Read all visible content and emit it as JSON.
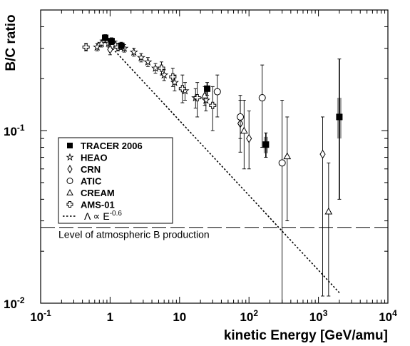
{
  "chart_data": {
    "type": "scatter",
    "xscale": "log",
    "yscale": "log",
    "xlim": [
      0.1,
      10000
    ],
    "ylim": [
      0.01,
      0.5
    ],
    "xlabel": "kinetic Energy [GeV/amu]",
    "ylabel": "B/C ratio",
    "legend_position": "left",
    "x_ticks": [
      {
        "value": 0.1,
        "base": "10",
        "exp": "-1"
      },
      {
        "value": 1,
        "base": "1",
        "exp": ""
      },
      {
        "value": 10,
        "base": "10",
        "exp": ""
      },
      {
        "value": 100,
        "base": "10",
        "exp": "2"
      },
      {
        "value": 1000,
        "base": "10",
        "exp": "3"
      },
      {
        "value": 10000,
        "base": "10",
        "exp": "4"
      }
    ],
    "y_ticks": [
      {
        "value": 0.01,
        "base": "10",
        "exp": "-2"
      },
      {
        "value": 0.1,
        "base": "10",
        "exp": "-1"
      }
    ],
    "atmospheric_level": {
      "y": 0.0275,
      "label": "Level of atmospheric B production"
    },
    "fit_line": {
      "label_prefix": "Λ ∝ E",
      "label_exp": "-0.6",
      "x": [
        1,
        2000
      ],
      "y": [
        0.31,
        0.0115
      ]
    },
    "series": [
      {
        "name": "TRACER 2006",
        "marker": "square-filled",
        "points": [
          {
            "x": 0.85,
            "y": 0.345,
            "ylo": 0.325,
            "yhi": 0.36
          },
          {
            "x": 1.05,
            "y": 0.33,
            "ylo": 0.315,
            "yhi": 0.345
          },
          {
            "x": 1.45,
            "y": 0.31,
            "ylo": 0.295,
            "yhi": 0.325
          },
          {
            "x": 25,
            "y": 0.175,
            "ylo": 0.16,
            "yhi": 0.19
          },
          {
            "x": 175,
            "y": 0.083,
            "ylo": 0.07,
            "yhi": 0.097,
            "sys_lo": 0.074,
            "sys_hi": 0.092
          },
          {
            "x": 2000,
            "y": 0.12,
            "ylo": 0.04,
            "yhi": 0.26,
            "sys_lo": 0.09,
            "sys_hi": 0.155
          }
        ]
      },
      {
        "name": "HEAO",
        "marker": "star",
        "points": [
          {
            "x": 0.65,
            "y": 0.305,
            "ylo": 0.29,
            "yhi": 0.32
          },
          {
            "x": 0.75,
            "y": 0.32,
            "ylo": 0.305,
            "yhi": 0.335
          },
          {
            "x": 0.95,
            "y": 0.32,
            "ylo": 0.305,
            "yhi": 0.335
          },
          {
            "x": 1.2,
            "y": 0.315,
            "ylo": 0.3,
            "yhi": 0.33
          },
          {
            "x": 1.6,
            "y": 0.3,
            "ylo": 0.285,
            "yhi": 0.315
          },
          {
            "x": 2.2,
            "y": 0.285,
            "ylo": 0.27,
            "yhi": 0.3
          },
          {
            "x": 2.8,
            "y": 0.265,
            "ylo": 0.25,
            "yhi": 0.28
          },
          {
            "x": 3.5,
            "y": 0.25,
            "ylo": 0.235,
            "yhi": 0.265
          },
          {
            "x": 4.5,
            "y": 0.23,
            "ylo": 0.215,
            "yhi": 0.245
          },
          {
            "x": 6.0,
            "y": 0.21,
            "ylo": 0.195,
            "yhi": 0.225
          },
          {
            "x": 8.5,
            "y": 0.19,
            "ylo": 0.17,
            "yhi": 0.21
          },
          {
            "x": 12,
            "y": 0.17,
            "ylo": 0.15,
            "yhi": 0.19
          },
          {
            "x": 17,
            "y": 0.155,
            "ylo": 0.135,
            "yhi": 0.175
          },
          {
            "x": 24,
            "y": 0.15,
            "ylo": 0.13,
            "yhi": 0.17
          }
        ]
      },
      {
        "name": "CRN",
        "marker": "diamond",
        "points": [
          {
            "x": 1.0,
            "y": 0.295,
            "ylo": 0.275,
            "yhi": 0.315
          },
          {
            "x": 75,
            "y": 0.11,
            "ylo": 0.075,
            "yhi": 0.15
          },
          {
            "x": 100,
            "y": 0.09,
            "ylo": 0.06,
            "yhi": 0.13
          },
          {
            "x": 1150,
            "y": 0.073,
            "ylo": 0.011,
            "yhi": 0.12
          }
        ]
      },
      {
        "name": "ATIC",
        "marker": "circle",
        "points": [
          {
            "x": 35,
            "y": 0.168,
            "ylo": 0.12,
            "yhi": 0.21
          },
          {
            "x": 75,
            "y": 0.12,
            "ylo": 0.09,
            "yhi": 0.16
          },
          {
            "x": 155,
            "y": 0.155,
            "ylo": 0.08,
            "yhi": 0.24
          },
          {
            "x": 300,
            "y": 0.065,
            "ylo": 0.01,
            "yhi": 0.15
          }
        ]
      },
      {
        "name": "CREAM",
        "marker": "triangle",
        "points": [
          {
            "x": 23,
            "y": 0.16,
            "ylo": 0.14,
            "yhi": 0.18
          },
          {
            "x": 85,
            "y": 0.1,
            "ylo": 0.06,
            "yhi": 0.15
          },
          {
            "x": 355,
            "y": 0.071,
            "ylo": 0.03,
            "yhi": 0.12
          },
          {
            "x": 1400,
            "y": 0.034,
            "ylo": 0.011,
            "yhi": 0.065
          }
        ]
      },
      {
        "name": "AMS-01",
        "marker": "cross",
        "points": [
          {
            "x": 0.45,
            "y": 0.305,
            "ylo": 0.29,
            "yhi": 0.32
          },
          {
            "x": 1.3,
            "y": 0.305,
            "ylo": 0.29,
            "yhi": 0.32
          },
          {
            "x": 5.5,
            "y": 0.23,
            "ylo": 0.21,
            "yhi": 0.25
          },
          {
            "x": 8,
            "y": 0.205,
            "ylo": 0.18,
            "yhi": 0.23
          },
          {
            "x": 11,
            "y": 0.175,
            "ylo": 0.145,
            "yhi": 0.21
          },
          {
            "x": 18,
            "y": 0.155,
            "ylo": 0.12,
            "yhi": 0.19
          },
          {
            "x": 30,
            "y": 0.14,
            "ylo": 0.1,
            "yhi": 0.18
          }
        ]
      }
    ]
  }
}
